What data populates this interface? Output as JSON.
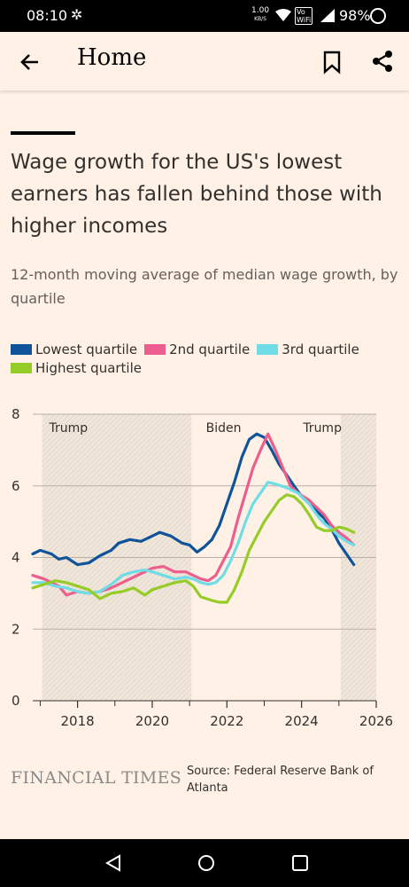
{
  "status_bar": {
    "time": "08:10",
    "speed_value": "1.00",
    "speed_unit": "KB/S",
    "volte_top": "Vo",
    "volte_bottom": "WiFi",
    "battery": "98%"
  },
  "app_bar": {
    "title": "Home",
    "icons": [
      "back-arrow-icon",
      "bookmark-icon",
      "share-icon"
    ]
  },
  "article": {
    "headline": "Wage growth for the US's lowest earners has fallen behind those with higher incomes",
    "subtitle": "12-month moving average of median wage growth, by quartile"
  },
  "legend": [
    {
      "label": "Lowest quartile",
      "color": "#0f5499"
    },
    {
      "label": "2nd quartile",
      "color": "#eb5e8d"
    },
    {
      "label": "3rd quartile",
      "color": "#70dce6"
    },
    {
      "label": "Highest quartile",
      "color": "#96cc28"
    }
  ],
  "chart_data": {
    "type": "line",
    "xlim": [
      2016.8,
      2026
    ],
    "ylim": [
      0,
      8
    ],
    "x_ticks": [
      "2018",
      "2020",
      "2022",
      "2024",
      "2026"
    ],
    "x_tick_values": [
      2018,
      2020,
      2022,
      2024,
      2026
    ],
    "y_ticks": [
      "0",
      "2",
      "4",
      "6",
      "8"
    ],
    "y_tick_values": [
      0,
      2,
      4,
      6,
      8
    ],
    "grid": true,
    "legend_position": "top",
    "shaded_periods": [
      {
        "label": "Trump",
        "start": 2017.05,
        "end": 2021.05
      },
      {
        "label": "Trump",
        "start": 2025.05,
        "end": 2026
      }
    ],
    "period_labels": [
      {
        "label": "Trump",
        "x": 2017.05
      },
      {
        "label": "Biden",
        "x": 2021.25
      },
      {
        "label": "Trump",
        "x": 2023.85
      }
    ],
    "series": [
      {
        "name": "Lowest quartile",
        "color": "#0f5499",
        "points": [
          [
            2016.8,
            4.1
          ],
          [
            2017.0,
            4.2
          ],
          [
            2017.3,
            4.1
          ],
          [
            2017.5,
            3.95
          ],
          [
            2017.7,
            4.0
          ],
          [
            2018.0,
            3.8
          ],
          [
            2018.3,
            3.85
          ],
          [
            2018.6,
            4.05
          ],
          [
            2018.9,
            4.2
          ],
          [
            2019.1,
            4.4
          ],
          [
            2019.4,
            4.5
          ],
          [
            2019.7,
            4.45
          ],
          [
            2020.0,
            4.6
          ],
          [
            2020.2,
            4.7
          ],
          [
            2020.5,
            4.6
          ],
          [
            2020.8,
            4.4
          ],
          [
            2021.0,
            4.35
          ],
          [
            2021.2,
            4.15
          ],
          [
            2021.4,
            4.3
          ],
          [
            2021.6,
            4.5
          ],
          [
            2021.8,
            4.9
          ],
          [
            2022.0,
            5.5
          ],
          [
            2022.2,
            6.1
          ],
          [
            2022.4,
            6.8
          ],
          [
            2022.6,
            7.3
          ],
          [
            2022.8,
            7.45
          ],
          [
            2023.0,
            7.35
          ],
          [
            2023.2,
            7.0
          ],
          [
            2023.4,
            6.6
          ],
          [
            2023.6,
            6.3
          ],
          [
            2023.8,
            6.0
          ],
          [
            2024.0,
            5.7
          ],
          [
            2024.2,
            5.5
          ],
          [
            2024.4,
            5.3
          ],
          [
            2024.6,
            5.1
          ],
          [
            2024.8,
            4.8
          ],
          [
            2025.0,
            4.4
          ],
          [
            2025.2,
            4.1
          ],
          [
            2025.4,
            3.8
          ]
        ]
      },
      {
        "name": "2nd quartile",
        "color": "#eb5e8d",
        "points": [
          [
            2016.8,
            3.5
          ],
          [
            2017.1,
            3.4
          ],
          [
            2017.5,
            3.2
          ],
          [
            2017.7,
            2.95
          ],
          [
            2018.0,
            3.05
          ],
          [
            2018.3,
            3.0
          ],
          [
            2018.6,
            3.05
          ],
          [
            2018.9,
            3.15
          ],
          [
            2019.2,
            3.3
          ],
          [
            2019.5,
            3.45
          ],
          [
            2019.8,
            3.6
          ],
          [
            2020.0,
            3.7
          ],
          [
            2020.3,
            3.75
          ],
          [
            2020.6,
            3.6
          ],
          [
            2020.9,
            3.6
          ],
          [
            2021.1,
            3.5
          ],
          [
            2021.3,
            3.4
          ],
          [
            2021.5,
            3.35
          ],
          [
            2021.7,
            3.5
          ],
          [
            2021.9,
            3.9
          ],
          [
            2022.1,
            4.3
          ],
          [
            2022.3,
            5.1
          ],
          [
            2022.5,
            5.8
          ],
          [
            2022.7,
            6.5
          ],
          [
            2022.9,
            7.0
          ],
          [
            2023.1,
            7.45
          ],
          [
            2023.3,
            7.0
          ],
          [
            2023.5,
            6.5
          ],
          [
            2023.7,
            6.0
          ],
          [
            2023.9,
            5.8
          ],
          [
            2024.2,
            5.6
          ],
          [
            2024.4,
            5.4
          ],
          [
            2024.6,
            5.2
          ],
          [
            2024.8,
            4.9
          ],
          [
            2025.0,
            4.7
          ],
          [
            2025.2,
            4.55
          ],
          [
            2025.4,
            4.35
          ]
        ]
      },
      {
        "name": "3rd quartile",
        "color": "#70dce6",
        "points": [
          [
            2016.8,
            3.3
          ],
          [
            2017.1,
            3.3
          ],
          [
            2017.4,
            3.2
          ],
          [
            2017.7,
            3.15
          ],
          [
            2018.0,
            3.05
          ],
          [
            2018.3,
            3.0
          ],
          [
            2018.6,
            3.05
          ],
          [
            2018.9,
            3.25
          ],
          [
            2019.2,
            3.5
          ],
          [
            2019.5,
            3.6
          ],
          [
            2019.8,
            3.65
          ],
          [
            2020.0,
            3.6
          ],
          [
            2020.3,
            3.5
          ],
          [
            2020.6,
            3.4
          ],
          [
            2020.9,
            3.45
          ],
          [
            2021.1,
            3.4
          ],
          [
            2021.3,
            3.3
          ],
          [
            2021.5,
            3.25
          ],
          [
            2021.7,
            3.3
          ],
          [
            2021.9,
            3.5
          ],
          [
            2022.1,
            3.9
          ],
          [
            2022.3,
            4.4
          ],
          [
            2022.5,
            5.0
          ],
          [
            2022.7,
            5.5
          ],
          [
            2022.9,
            5.8
          ],
          [
            2023.1,
            6.1
          ],
          [
            2023.3,
            6.05
          ],
          [
            2023.6,
            5.95
          ],
          [
            2023.9,
            5.8
          ],
          [
            2024.2,
            5.5
          ],
          [
            2024.4,
            5.2
          ],
          [
            2024.6,
            4.95
          ],
          [
            2024.8,
            4.8
          ],
          [
            2025.0,
            4.6
          ],
          [
            2025.2,
            4.45
          ],
          [
            2025.4,
            4.35
          ]
        ]
      },
      {
        "name": "Highest quartile",
        "color": "#96cc28",
        "points": [
          [
            2016.8,
            3.15
          ],
          [
            2017.1,
            3.25
          ],
          [
            2017.4,
            3.35
          ],
          [
            2017.7,
            3.3
          ],
          [
            2018.0,
            3.2
          ],
          [
            2018.3,
            3.1
          ],
          [
            2018.6,
            2.85
          ],
          [
            2018.9,
            3.0
          ],
          [
            2019.2,
            3.05
          ],
          [
            2019.5,
            3.15
          ],
          [
            2019.8,
            2.95
          ],
          [
            2020.0,
            3.1
          ],
          [
            2020.3,
            3.2
          ],
          [
            2020.6,
            3.3
          ],
          [
            2020.9,
            3.35
          ],
          [
            2021.1,
            3.2
          ],
          [
            2021.3,
            2.9
          ],
          [
            2021.6,
            2.8
          ],
          [
            2021.8,
            2.75
          ],
          [
            2022.0,
            2.75
          ],
          [
            2022.2,
            3.1
          ],
          [
            2022.4,
            3.6
          ],
          [
            2022.6,
            4.2
          ],
          [
            2022.8,
            4.6
          ],
          [
            2023.0,
            5.0
          ],
          [
            2023.2,
            5.3
          ],
          [
            2023.4,
            5.6
          ],
          [
            2023.6,
            5.75
          ],
          [
            2023.8,
            5.7
          ],
          [
            2024.0,
            5.5
          ],
          [
            2024.2,
            5.2
          ],
          [
            2024.4,
            4.85
          ],
          [
            2024.6,
            4.75
          ],
          [
            2024.8,
            4.75
          ],
          [
            2025.0,
            4.85
          ],
          [
            2025.2,
            4.8
          ],
          [
            2025.4,
            4.7
          ]
        ]
      }
    ]
  },
  "footer": {
    "brand": "FINANCIAL TIMES",
    "source": "Source: Federal Reserve Bank of Atlanta"
  },
  "nav_bar": {
    "icons": [
      "back-triangle-icon",
      "home-circle-icon",
      "recents-square-icon"
    ]
  }
}
